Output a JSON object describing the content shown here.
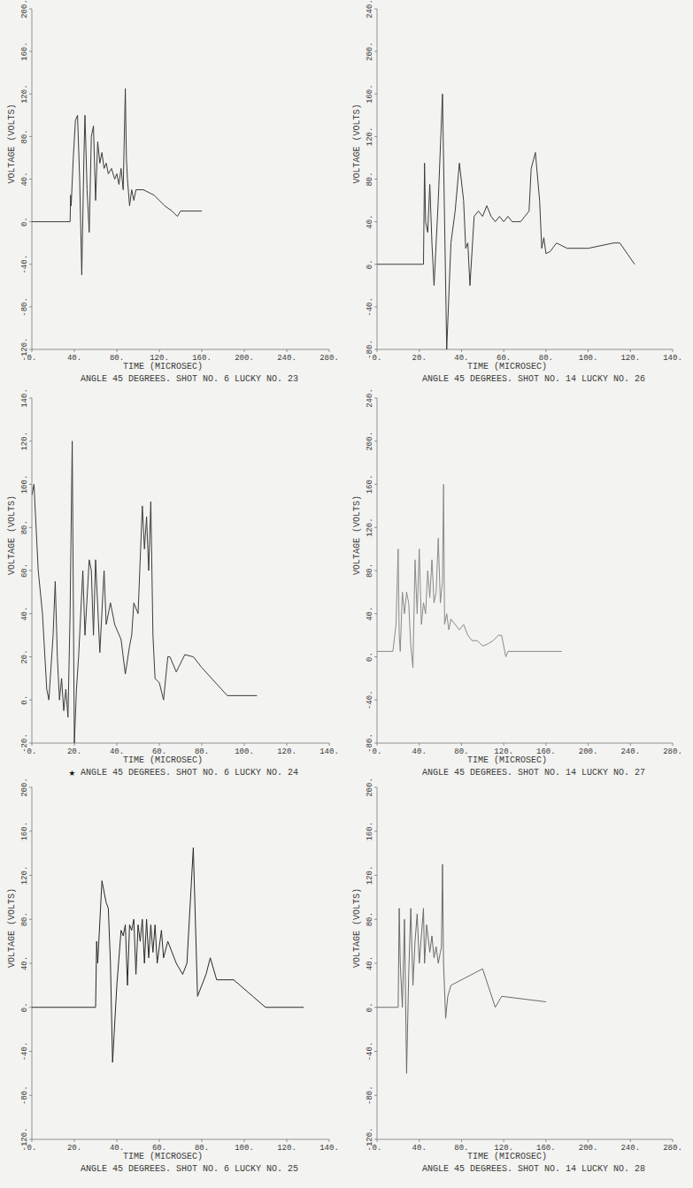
{
  "chart_data": [
    {
      "type": "line",
      "title": "ANGLE 45 DEGREES. SHOT NO. 6 LUCKY NO. 23",
      "x_label": "TIME (MICROSEC)",
      "y_label": "VOLTAGE (VOLTS)",
      "color": "#3c3c3c",
      "xlim": [
        0,
        280
      ],
      "ylim": [
        -120,
        200
      ],
      "xticks": [
        {
          "value": 0,
          "label": "0."
        },
        {
          "value": 40,
          "label": "40."
        },
        {
          "value": 80,
          "label": "80."
        },
        {
          "value": 120,
          "label": "120."
        },
        {
          "value": 160,
          "label": "160."
        },
        {
          "value": 200,
          "label": "200."
        },
        {
          "value": 240,
          "label": "240."
        },
        {
          "value": 280,
          "label": "280."
        }
      ],
      "yticks": [
        {
          "value": -120,
          "label": "-120."
        },
        {
          "value": -80,
          "label": "-80."
        },
        {
          "value": -40,
          "label": "-40."
        },
        {
          "value": 0,
          "label": "0."
        },
        {
          "value": 40,
          "label": "40."
        },
        {
          "value": 80,
          "label": "80."
        },
        {
          "value": 120,
          "label": "120."
        },
        {
          "value": 160,
          "label": "160."
        },
        {
          "value": 200,
          "label": "200."
        }
      ],
      "x": [
        0,
        36,
        36.5,
        37,
        39,
        41,
        43,
        45,
        47,
        49,
        50,
        52,
        54,
        56,
        58,
        60,
        62,
        64,
        66,
        68,
        70,
        72,
        75,
        78,
        80,
        82,
        84,
        86,
        88,
        89,
        90,
        92,
        94,
        96,
        98,
        100,
        105,
        115,
        125,
        132,
        137,
        140,
        150,
        160
      ],
      "values": [
        0,
        0,
        25,
        15,
        60,
        95,
        100,
        40,
        -50,
        60,
        100,
        30,
        -10,
        80,
        90,
        20,
        75,
        55,
        65,
        50,
        55,
        45,
        50,
        40,
        45,
        35,
        50,
        30,
        125,
        60,
        40,
        15,
        30,
        20,
        30,
        30,
        30,
        25,
        15,
        10,
        5,
        10,
        10,
        10
      ]
    },
    {
      "type": "line",
      "title": "ANGLE 45 DEGREES. SHOT NO. 14 LUCKY NO. 26",
      "x_label": "TIME (MICROSEC)",
      "y_label": "VOLTAGE (VOLTS)",
      "color": "#3c3c3c",
      "xlim": [
        0,
        140
      ],
      "ylim": [
        -80,
        240
      ],
      "xticks": [
        {
          "value": 0,
          "label": "0."
        },
        {
          "value": 20,
          "label": "20."
        },
        {
          "value": 40,
          "label": "40."
        },
        {
          "value": 60,
          "label": "60."
        },
        {
          "value": 80,
          "label": "80."
        },
        {
          "value": 100,
          "label": "100."
        },
        {
          "value": 120,
          "label": "120."
        },
        {
          "value": 140,
          "label": "140."
        }
      ],
      "yticks": [
        {
          "value": -80,
          "label": "-80."
        },
        {
          "value": -40,
          "label": "-40."
        },
        {
          "value": 0,
          "label": "0."
        },
        {
          "value": 40,
          "label": "40."
        },
        {
          "value": 80,
          "label": "80."
        },
        {
          "value": 120,
          "label": "120."
        },
        {
          "value": 160,
          "label": "160."
        },
        {
          "value": 200,
          "label": "200."
        },
        {
          "value": 240,
          "label": "240."
        }
      ],
      "x": [
        0,
        22,
        22.5,
        23,
        24,
        25,
        26,
        27,
        29,
        31,
        33,
        35,
        37,
        39,
        41,
        42,
        43,
        44,
        46,
        48,
        50,
        52,
        54,
        56,
        58,
        60,
        62,
        64,
        66,
        68,
        70,
        72,
        73,
        75,
        77,
        78,
        79,
        80,
        82,
        85,
        90,
        100,
        112,
        115,
        122
      ],
      "values": [
        0,
        0,
        95,
        40,
        30,
        75,
        20,
        -20,
        60,
        160,
        -80,
        20,
        50,
        95,
        60,
        15,
        20,
        -20,
        45,
        50,
        45,
        55,
        45,
        40,
        45,
        40,
        45,
        40,
        40,
        40,
        45,
        50,
        90,
        105,
        60,
        15,
        25,
        10,
        12,
        20,
        15,
        15,
        20,
        20,
        0
      ]
    },
    {
      "type": "line",
      "title": "ANGLE 45 DEGREES. SHOT NO. 6 LUCKY NO. 24",
      "annotations": [
        "★"
      ],
      "x_label": "TIME (MICROSEC)",
      "y_label": "VOLTAGE (VOLTS)",
      "color": "#3c3c3c",
      "xlim": [
        0,
        140
      ],
      "ylim": [
        -20,
        140
      ],
      "xticks": [
        {
          "value": 0,
          "label": "0."
        },
        {
          "value": 20,
          "label": "20."
        },
        {
          "value": 40,
          "label": "40."
        },
        {
          "value": 60,
          "label": "60."
        },
        {
          "value": 80,
          "label": "80."
        },
        {
          "value": 100,
          "label": "100."
        },
        {
          "value": 120,
          "label": "120."
        },
        {
          "value": 140,
          "label": "140."
        }
      ],
      "yticks": [
        {
          "value": -20,
          "label": "-20."
        },
        {
          "value": 0,
          "label": "0."
        },
        {
          "value": 20,
          "label": "20."
        },
        {
          "value": 40,
          "label": "40."
        },
        {
          "value": 60,
          "label": "60."
        },
        {
          "value": 80,
          "label": "80."
        },
        {
          "value": 100,
          "label": "100."
        },
        {
          "value": 120,
          "label": "120."
        },
        {
          "value": 140,
          "label": "140."
        }
      ],
      "x": [
        0,
        1,
        3,
        5,
        7,
        8,
        10,
        11,
        12,
        13,
        14,
        15,
        16,
        17,
        18,
        19,
        20,
        21,
        22,
        24,
        25,
        27,
        28,
        29,
        30,
        32,
        34,
        35,
        37,
        39,
        42,
        44,
        46,
        47,
        48,
        50,
        52,
        53,
        54,
        55,
        56,
        57,
        58,
        60,
        62,
        64,
        65,
        68,
        69,
        72,
        76,
        80,
        92,
        100,
        106
      ],
      "values": [
        95,
        100,
        60,
        40,
        5,
        0,
        30,
        55,
        20,
        0,
        10,
        -5,
        5,
        -8,
        40,
        120,
        -20,
        5,
        20,
        60,
        30,
        65,
        60,
        30,
        65,
        22,
        60,
        35,
        45,
        35,
        28,
        12,
        25,
        30,
        45,
        40,
        90,
        70,
        85,
        60,
        92,
        30,
        10,
        8,
        0,
        20,
        20,
        13,
        15,
        21,
        20,
        15,
        2,
        2,
        2
      ]
    },
    {
      "type": "line",
      "title": "ANGLE 45 DEGREES. SHOT NO. 14 LUCKY NO. 27",
      "x_label": "TIME (MICROSEC)",
      "y_label": "VOLTAGE (VOLTS)",
      "color": "#8a8a8a",
      "xlim": [
        0,
        280
      ],
      "ylim": [
        -80,
        240
      ],
      "xticks": [
        {
          "value": 0,
          "label": "0."
        },
        {
          "value": 40,
          "label": "40."
        },
        {
          "value": 80,
          "label": "80."
        },
        {
          "value": 120,
          "label": "120."
        },
        {
          "value": 160,
          "label": "160."
        },
        {
          "value": 200,
          "label": "200."
        },
        {
          "value": 240,
          "label": "240."
        },
        {
          "value": 280,
          "label": "280."
        }
      ],
      "yticks": [
        {
          "value": -80,
          "label": "-80."
        },
        {
          "value": -40,
          "label": "-40."
        },
        {
          "value": 0,
          "label": "0."
        },
        {
          "value": 40,
          "label": "40."
        },
        {
          "value": 80,
          "label": "80."
        },
        {
          "value": 120,
          "label": "120."
        },
        {
          "value": 160,
          "label": "160."
        },
        {
          "value": 200,
          "label": "200."
        },
        {
          "value": 240,
          "label": "240."
        }
      ],
      "x": [
        0,
        15,
        18,
        20,
        21,
        22,
        24,
        26,
        28,
        30,
        32,
        34,
        36,
        38,
        40,
        42,
        44,
        46,
        48,
        50,
        52,
        54,
        56,
        58,
        60,
        62,
        63,
        64,
        66,
        68,
        70,
        74,
        78,
        82,
        86,
        90,
        95,
        100,
        105,
        110,
        115,
        118,
        122,
        124,
        175
      ],
      "values": [
        5,
        5,
        30,
        100,
        20,
        5,
        60,
        40,
        60,
        50,
        10,
        -10,
        90,
        40,
        100,
        30,
        50,
        40,
        80,
        55,
        90,
        50,
        60,
        110,
        50,
        70,
        160,
        30,
        40,
        25,
        35,
        30,
        25,
        30,
        20,
        15,
        15,
        10,
        12,
        15,
        20,
        20,
        0,
        5,
        5
      ]
    },
    {
      "type": "line",
      "title": "ANGLE 45 DEGREES. SHOT NO. 6 LUCKY NO. 25",
      "x_label": "TIME (MICROSEC)",
      "y_label": "VOLTAGE (VOLTS)",
      "color": "#2a2a2a",
      "xlim": [
        0,
        140
      ],
      "ylim": [
        -120,
        200
      ],
      "xticks": [
        {
          "value": 0,
          "label": "0."
        },
        {
          "value": 20,
          "label": "20."
        },
        {
          "value": 40,
          "label": "40."
        },
        {
          "value": 60,
          "label": "60."
        },
        {
          "value": 80,
          "label": "80."
        },
        {
          "value": 100,
          "label": "100."
        },
        {
          "value": 120,
          "label": "120."
        },
        {
          "value": 140,
          "label": "140."
        }
      ],
      "yticks": [
        {
          "value": -120,
          "label": "-120."
        },
        {
          "value": -80,
          "label": "-80."
        },
        {
          "value": -40,
          "label": "-40."
        },
        {
          "value": 0,
          "label": "0."
        },
        {
          "value": 40,
          "label": "40."
        },
        {
          "value": 80,
          "label": "80."
        },
        {
          "value": 120,
          "label": "120."
        },
        {
          "value": 160,
          "label": "160."
        },
        {
          "value": 200,
          "label": "200."
        }
      ],
      "x": [
        0,
        30,
        30.5,
        31,
        33,
        35,
        36,
        37,
        38,
        40,
        42,
        43,
        44,
        45,
        46,
        47,
        48,
        49,
        50,
        51,
        52,
        53,
        54,
        55,
        56,
        57,
        58,
        59,
        61,
        62,
        64,
        68,
        71,
        73,
        76,
        78,
        82,
        84,
        87,
        95,
        104,
        110,
        128
      ],
      "values": [
        0,
        0,
        60,
        40,
        115,
        95,
        90,
        40,
        -50,
        20,
        70,
        65,
        75,
        20,
        75,
        70,
        80,
        30,
        75,
        60,
        80,
        40,
        80,
        45,
        75,
        50,
        75,
        40,
        70,
        45,
        60,
        40,
        30,
        40,
        145,
        10,
        30,
        45,
        25,
        25,
        10,
        0,
        0
      ]
    },
    {
      "type": "line",
      "title": "ANGLE 45 DEGREES. SHOT NO. 14 LUCKY NO. 28",
      "x_label": "TIME (MICROSEC)",
      "y_label": "VOLTAGE (VOLTS)",
      "color": "#6a6a6a",
      "xlim": [
        0,
        280
      ],
      "ylim": [
        -120,
        200
      ],
      "xticks": [
        {
          "value": 0,
          "label": "0."
        },
        {
          "value": 40,
          "label": "40."
        },
        {
          "value": 80,
          "label": "80."
        },
        {
          "value": 120,
          "label": "120."
        },
        {
          "value": 160,
          "label": "160."
        },
        {
          "value": 200,
          "label": "200."
        },
        {
          "value": 240,
          "label": "240."
        },
        {
          "value": 280,
          "label": "280."
        }
      ],
      "yticks": [
        {
          "value": -120,
          "label": "-120."
        },
        {
          "value": -80,
          "label": "-80."
        },
        {
          "value": -40,
          "label": "-40."
        },
        {
          "value": 0,
          "label": "0."
        },
        {
          "value": 40,
          "label": "40."
        },
        {
          "value": 80,
          "label": "80."
        },
        {
          "value": 120,
          "label": "120."
        },
        {
          "value": 160,
          "label": "160."
        },
        {
          "value": 200,
          "label": "200."
        }
      ],
      "x": [
        0,
        20,
        21,
        22,
        24,
        26,
        28,
        30,
        32,
        34,
        36,
        38,
        40,
        42,
        44,
        45,
        47,
        50,
        52,
        54,
        56,
        58,
        60,
        61,
        62,
        63,
        65,
        67,
        70,
        100,
        112,
        118,
        160
      ],
      "values": [
        0,
        0,
        90,
        40,
        0,
        80,
        -60,
        30,
        90,
        20,
        60,
        85,
        40,
        65,
        90,
        40,
        75,
        50,
        65,
        45,
        55,
        40,
        50,
        55,
        130,
        40,
        -10,
        10,
        20,
        35,
        0,
        10,
        5
      ]
    }
  ]
}
